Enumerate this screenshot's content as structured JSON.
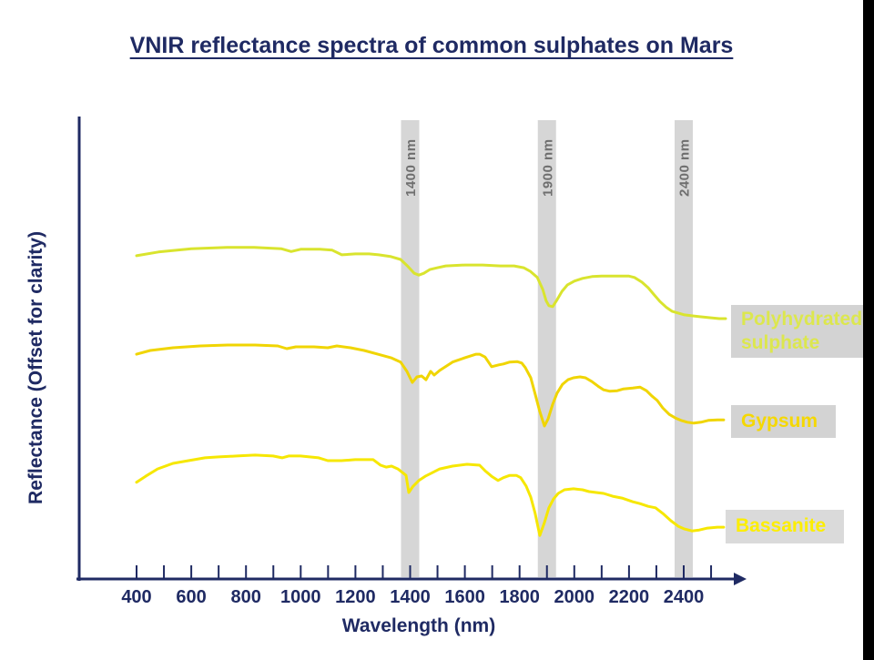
{
  "theme": {
    "navy": "#1f2a63",
    "band_fill": "#d6d6d6",
    "band_text": "#6f6f6f",
    "black_bar": "#000000",
    "background": "#ffffff"
  },
  "chart_data": {
    "type": "line",
    "title": "VNIR reflectance spectra of common sulphates on Mars",
    "xlabel": "Wavelength (nm)",
    "ylabel": "Reflectance (Offset for clarity)",
    "y_units": "arbitrary reflectance, offset for clarity (0-1 of plot height)",
    "grid": false,
    "x_axis": {
      "labeled_ticks": [
        400,
        600,
        800,
        1000,
        1200,
        1400,
        1600,
        1800,
        2000,
        2200,
        2400
      ],
      "minor_tick_step": 100,
      "tick_min": 400,
      "tick_max": 2500
    },
    "bands": [
      {
        "center_nm": 1400,
        "label": "1400 nm"
      },
      {
        "center_nm": 1900,
        "label": "1900 nm"
      },
      {
        "center_nm": 2400,
        "label": "2400 nm"
      }
    ],
    "series": [
      {
        "name": "Polyhydrated sulphate",
        "color": "#d9e42e",
        "points": [
          [
            400,
            0.699
          ],
          [
            480,
            0.707
          ],
          [
            600,
            0.714
          ],
          [
            730,
            0.717
          ],
          [
            830,
            0.717
          ],
          [
            930,
            0.714
          ],
          [
            965,
            0.708
          ],
          [
            1000,
            0.713
          ],
          [
            1070,
            0.713
          ],
          [
            1115,
            0.711
          ],
          [
            1150,
            0.701
          ],
          [
            1200,
            0.703
          ],
          [
            1250,
            0.703
          ],
          [
            1285,
            0.701
          ],
          [
            1330,
            0.697
          ],
          [
            1365,
            0.691
          ],
          [
            1390,
            0.677
          ],
          [
            1415,
            0.661
          ],
          [
            1432,
            0.657
          ],
          [
            1450,
            0.661
          ],
          [
            1472,
            0.669
          ],
          [
            1500,
            0.673
          ],
          [
            1530,
            0.677
          ],
          [
            1600,
            0.679
          ],
          [
            1665,
            0.679
          ],
          [
            1730,
            0.677
          ],
          [
            1780,
            0.677
          ],
          [
            1815,
            0.673
          ],
          [
            1840,
            0.665
          ],
          [
            1865,
            0.652
          ],
          [
            1885,
            0.626
          ],
          [
            1897,
            0.602
          ],
          [
            1907,
            0.591
          ],
          [
            1921,
            0.589
          ],
          [
            1935,
            0.602
          ],
          [
            1955,
            0.622
          ],
          [
            1975,
            0.636
          ],
          [
            2000,
            0.644
          ],
          [
            2030,
            0.65
          ],
          [
            2065,
            0.654
          ],
          [
            2100,
            0.655
          ],
          [
            2165,
            0.655
          ],
          [
            2200,
            0.655
          ],
          [
            2220,
            0.652
          ],
          [
            2247,
            0.642
          ],
          [
            2270,
            0.63
          ],
          [
            2290,
            0.616
          ],
          [
            2313,
            0.6
          ],
          [
            2337,
            0.587
          ],
          [
            2357,
            0.579
          ],
          [
            2380,
            0.575
          ],
          [
            2403,
            0.571
          ],
          [
            2430,
            0.569
          ],
          [
            2463,
            0.567
          ],
          [
            2496,
            0.565
          ],
          [
            2530,
            0.563
          ],
          [
            2553,
            0.563
          ]
        ]
      },
      {
        "name": "Gypsum",
        "color": "#f0d502",
        "points": [
          [
            400,
            0.486
          ],
          [
            450,
            0.494
          ],
          [
            533,
            0.5
          ],
          [
            633,
            0.504
          ],
          [
            733,
            0.506
          ],
          [
            833,
            0.506
          ],
          [
            916,
            0.504
          ],
          [
            949,
            0.498
          ],
          [
            982,
            0.502
          ],
          [
            1049,
            0.502
          ],
          [
            1099,
            0.5
          ],
          [
            1132,
            0.504
          ],
          [
            1182,
            0.5
          ],
          [
            1232,
            0.494
          ],
          [
            1282,
            0.486
          ],
          [
            1332,
            0.478
          ],
          [
            1365,
            0.469
          ],
          [
            1388,
            0.449
          ],
          [
            1408,
            0.425
          ],
          [
            1425,
            0.437
          ],
          [
            1442,
            0.439
          ],
          [
            1458,
            0.431
          ],
          [
            1475,
            0.449
          ],
          [
            1488,
            0.441
          ],
          [
            1508,
            0.451
          ],
          [
            1555,
            0.469
          ],
          [
            1598,
            0.478
          ],
          [
            1641,
            0.486
          ],
          [
            1654,
            0.486
          ],
          [
            1674,
            0.48
          ],
          [
            1698,
            0.459
          ],
          [
            1724,
            0.463
          ],
          [
            1741,
            0.465
          ],
          [
            1764,
            0.469
          ],
          [
            1791,
            0.47
          ],
          [
            1808,
            0.467
          ],
          [
            1821,
            0.457
          ],
          [
            1841,
            0.435
          ],
          [
            1857,
            0.4
          ],
          [
            1874,
            0.362
          ],
          [
            1891,
            0.331
          ],
          [
            1904,
            0.346
          ],
          [
            1921,
            0.378
          ],
          [
            1937,
            0.402
          ],
          [
            1957,
            0.421
          ],
          [
            1977,
            0.431
          ],
          [
            1997,
            0.435
          ],
          [
            2021,
            0.437
          ],
          [
            2041,
            0.435
          ],
          [
            2064,
            0.427
          ],
          [
            2087,
            0.417
          ],
          [
            2107,
            0.409
          ],
          [
            2130,
            0.406
          ],
          [
            2157,
            0.407
          ],
          [
            2180,
            0.411
          ],
          [
            2214,
            0.413
          ],
          [
            2240,
            0.415
          ],
          [
            2264,
            0.407
          ],
          [
            2283,
            0.396
          ],
          [
            2303,
            0.386
          ],
          [
            2323,
            0.37
          ],
          [
            2347,
            0.356
          ],
          [
            2370,
            0.348
          ],
          [
            2390,
            0.343
          ],
          [
            2413,
            0.339
          ],
          [
            2437,
            0.337
          ],
          [
            2463,
            0.339
          ],
          [
            2490,
            0.343
          ],
          [
            2523,
            0.344
          ],
          [
            2546,
            0.344
          ]
        ]
      },
      {
        "name": "Bassanite",
        "color": "#f6e702",
        "points": [
          [
            400,
            0.209
          ],
          [
            433,
            0.222
          ],
          [
            477,
            0.238
          ],
          [
            533,
            0.25
          ],
          [
            590,
            0.256
          ],
          [
            650,
            0.262
          ],
          [
            700,
            0.264
          ],
          [
            766,
            0.266
          ],
          [
            833,
            0.268
          ],
          [
            899,
            0.266
          ],
          [
            932,
            0.262
          ],
          [
            956,
            0.266
          ],
          [
            999,
            0.266
          ],
          [
            1032,
            0.264
          ],
          [
            1066,
            0.262
          ],
          [
            1099,
            0.256
          ],
          [
            1149,
            0.256
          ],
          [
            1199,
            0.258
          ],
          [
            1232,
            0.258
          ],
          [
            1265,
            0.258
          ],
          [
            1292,
            0.246
          ],
          [
            1312,
            0.242
          ],
          [
            1332,
            0.244
          ],
          [
            1355,
            0.238
          ],
          [
            1385,
            0.224
          ],
          [
            1395,
            0.187
          ],
          [
            1410,
            0.2
          ],
          [
            1432,
            0.213
          ],
          [
            1455,
            0.222
          ],
          [
            1475,
            0.228
          ],
          [
            1508,
            0.238
          ],
          [
            1555,
            0.244
          ],
          [
            1608,
            0.248
          ],
          [
            1654,
            0.246
          ],
          [
            1674,
            0.234
          ],
          [
            1698,
            0.222
          ],
          [
            1721,
            0.213
          ],
          [
            1741,
            0.219
          ],
          [
            1764,
            0.224
          ],
          [
            1788,
            0.224
          ],
          [
            1804,
            0.219
          ],
          [
            1824,
            0.201
          ],
          [
            1841,
            0.177
          ],
          [
            1857,
            0.142
          ],
          [
            1874,
            0.094
          ],
          [
            1891,
            0.122
          ],
          [
            1907,
            0.154
          ],
          [
            1924,
            0.173
          ],
          [
            1941,
            0.185
          ],
          [
            1964,
            0.193
          ],
          [
            1997,
            0.195
          ],
          [
            2030,
            0.193
          ],
          [
            2054,
            0.189
          ],
          [
            2080,
            0.187
          ],
          [
            2107,
            0.185
          ],
          [
            2140,
            0.179
          ],
          [
            2174,
            0.175
          ],
          [
            2214,
            0.167
          ],
          [
            2240,
            0.163
          ],
          [
            2270,
            0.157
          ],
          [
            2297,
            0.154
          ],
          [
            2323,
            0.142
          ],
          [
            2353,
            0.126
          ],
          [
            2380,
            0.114
          ],
          [
            2403,
            0.108
          ],
          [
            2430,
            0.104
          ],
          [
            2457,
            0.106
          ],
          [
            2487,
            0.11
          ],
          [
            2523,
            0.112
          ],
          [
            2546,
            0.112
          ]
        ]
      }
    ]
  },
  "legend_boxes": [
    {
      "label": "Polyhydrated sulphate",
      "lines": [
        "Polyhydrated",
        "sulphate"
      ],
      "text_color": "#dce74e",
      "bg": "#d3d3d3"
    },
    {
      "label": "Gypsum",
      "lines": [
        "Gypsum"
      ],
      "text_color": "#f5d800",
      "bg": "#d3d3d3"
    },
    {
      "label": "Bassanite",
      "lines": [
        "Bassanite"
      ],
      "text_color": "#fcee00",
      "bg": "#dadada"
    }
  ]
}
